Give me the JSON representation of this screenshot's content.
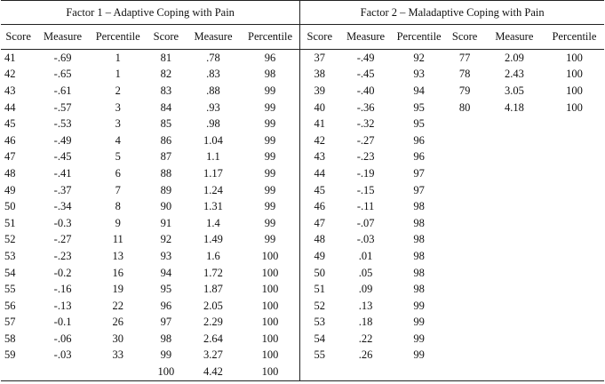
{
  "factor1": {
    "title": "Factor 1 – Adaptive Coping with Pain",
    "headers": [
      "Score",
      "Measure",
      "Percentile",
      "Score",
      "Measure",
      "Percentile"
    ],
    "rows": [
      [
        "41",
        "-.69",
        "1",
        "81",
        ".78",
        "96"
      ],
      [
        "42",
        "-.65",
        "1",
        "82",
        ".83",
        "98"
      ],
      [
        "43",
        "-.61",
        "2",
        "83",
        ".88",
        "99"
      ],
      [
        "44",
        "-.57",
        "3",
        "84",
        ".93",
        "99"
      ],
      [
        "45",
        "-.53",
        "3",
        "85",
        ".98",
        "99"
      ],
      [
        "46",
        "-.49",
        "4",
        "86",
        "1.04",
        "99"
      ],
      [
        "47",
        "-.45",
        "5",
        "87",
        "1.1",
        "99"
      ],
      [
        "48",
        "-.41",
        "6",
        "88",
        "1.17",
        "99"
      ],
      [
        "49",
        "-.37",
        "7",
        "89",
        "1.24",
        "99"
      ],
      [
        "50",
        "-.34",
        "8",
        "90",
        "1.31",
        "99"
      ],
      [
        "51",
        "-0.3",
        "9",
        "91",
        "1.4",
        "99"
      ],
      [
        "52",
        "-.27",
        "11",
        "92",
        "1.49",
        "99"
      ],
      [
        "53",
        "-.23",
        "13",
        "93",
        "1.6",
        "100"
      ],
      [
        "54",
        "-0.2",
        "16",
        "94",
        "1.72",
        "100"
      ],
      [
        "55",
        "-.16",
        "19",
        "95",
        "1.87",
        "100"
      ],
      [
        "56",
        "-.13",
        "22",
        "96",
        "2.05",
        "100"
      ],
      [
        "57",
        "-0.1",
        "26",
        "97",
        "2.29",
        "100"
      ],
      [
        "58",
        "-.06",
        "30",
        "98",
        "2.64",
        "100"
      ],
      [
        "59",
        "-.03",
        "33",
        "99",
        "3.27",
        "100"
      ],
      [
        "",
        "",
        "",
        "100",
        "4.42",
        "100"
      ]
    ]
  },
  "factor2": {
    "title": "Factor 2 – Maladaptive Coping with Pain",
    "headers": [
      "Score",
      "Measure",
      "Percentile",
      "Score",
      "Measure",
      "Percentile"
    ],
    "rows": [
      [
        "37",
        "-.49",
        "92",
        "77",
        "2.09",
        "100"
      ],
      [
        "38",
        "-.45",
        "93",
        "78",
        "2.43",
        "100"
      ],
      [
        "39",
        "-.40",
        "94",
        "79",
        "3.05",
        "100"
      ],
      [
        "40",
        "-.36",
        "95",
        "80",
        "4.18",
        "100"
      ],
      [
        "41",
        "-.32",
        "95",
        "",
        "",
        ""
      ],
      [
        "42",
        "-.27",
        "96",
        "",
        "",
        ""
      ],
      [
        "43",
        "-.23",
        "96",
        "",
        "",
        ""
      ],
      [
        "44",
        "-.19",
        "97",
        "",
        "",
        ""
      ],
      [
        "45",
        "-.15",
        "97",
        "",
        "",
        ""
      ],
      [
        "46",
        "-.11",
        "98",
        "",
        "",
        ""
      ],
      [
        "47",
        "-.07",
        "98",
        "",
        "",
        ""
      ],
      [
        "48",
        "-.03",
        "98",
        "",
        "",
        ""
      ],
      [
        "49",
        ".01",
        "98",
        "",
        "",
        ""
      ],
      [
        "50",
        ".05",
        "98",
        "",
        "",
        ""
      ],
      [
        "51",
        ".09",
        "98",
        "",
        "",
        ""
      ],
      [
        "52",
        ".13",
        "99",
        "",
        "",
        ""
      ],
      [
        "53",
        ".18",
        "99",
        "",
        "",
        ""
      ],
      [
        "54",
        ".22",
        "99",
        "",
        "",
        ""
      ],
      [
        "55",
        ".26",
        "99",
        "",
        "",
        ""
      ],
      [
        "",
        "",
        "",
        "",
        "",
        ""
      ]
    ]
  }
}
